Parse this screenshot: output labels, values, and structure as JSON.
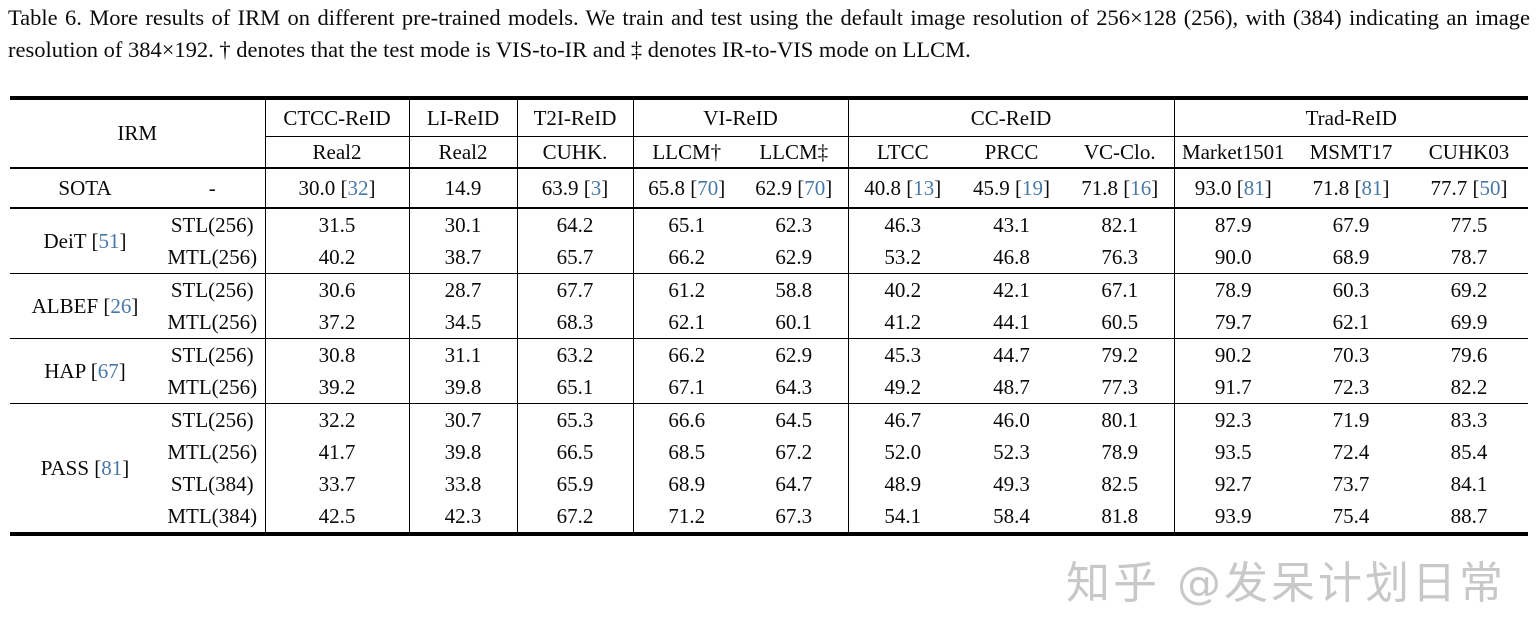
{
  "caption": {
    "text": "Table 6. More results of IRM on different pre-trained models. We train and test using the default image resolution of 256×128 (256), with (384) indicating an image resolution of 384×192. † denotes that the test mode is VIS-to-IR and ‡ denotes IR-to-VIS mode on LLCM."
  },
  "table": {
    "header": {
      "irm_label": "IRM",
      "groups": [
        {
          "label": "CTCC-ReID",
          "subs": [
            "Real2"
          ]
        },
        {
          "label": "LI-ReID",
          "subs": [
            "Real2"
          ]
        },
        {
          "label": "T2I-ReID",
          "subs": [
            "CUHK."
          ]
        },
        {
          "label": "VI-ReID",
          "subs": [
            "LLCM†",
            "LLCM‡"
          ]
        },
        {
          "label": "CC-ReID",
          "subs": [
            "LTCC",
            "PRCC",
            "VC-Clo."
          ]
        },
        {
          "label": "Trad-ReID",
          "subs": [
            "Market1501",
            "MSMT17",
            "CUHK03"
          ]
        }
      ]
    },
    "vline_after_value_cols": [
      0,
      1,
      2,
      4,
      7
    ],
    "sota_row": {
      "label": "SOTA",
      "setting": "-",
      "cells": [
        {
          "value": "30.0",
          "cite": "32"
        },
        {
          "value": "14.9"
        },
        {
          "value": "63.9",
          "cite": "3"
        },
        {
          "value": "65.8",
          "cite": "70"
        },
        {
          "value": "62.9",
          "cite": "70"
        },
        {
          "value": "40.8",
          "cite": "13"
        },
        {
          "value": "45.9",
          "cite": "19"
        },
        {
          "value": "71.8",
          "cite": "16"
        },
        {
          "value": "93.0",
          "cite": "81"
        },
        {
          "value": "71.8",
          "cite": "81"
        },
        {
          "value": "77.7",
          "cite": "50"
        }
      ]
    },
    "model_groups": [
      {
        "model": "DeiT",
        "cite": "51",
        "rows": [
          {
            "setting": "STL(256)",
            "values": [
              "31.5",
              "30.1",
              "64.2",
              "65.1",
              "62.3",
              "46.3",
              "43.1",
              "82.1",
              "87.9",
              "67.9",
              "77.5"
            ],
            "bold": []
          },
          {
            "setting": "MTL(256)",
            "values": [
              "40.2",
              "38.7",
              "65.7",
              "66.2",
              "62.9",
              "53.2",
              "46.8",
              "76.3",
              "90.0",
              "68.9",
              "78.7"
            ],
            "bold": []
          }
        ]
      },
      {
        "model": "ALBEF",
        "cite": "26",
        "rows": [
          {
            "setting": "STL(256)",
            "values": [
              "30.6",
              "28.7",
              "67.7",
              "61.2",
              "58.8",
              "40.2",
              "42.1",
              "67.1",
              "78.9",
              "60.3",
              "69.2"
            ],
            "bold": []
          },
          {
            "setting": "MTL(256)",
            "values": [
              "37.2",
              "34.5",
              "68.3",
              "62.1",
              "60.1",
              "41.2",
              "44.1",
              "60.5",
              "79.7",
              "62.1",
              "69.9"
            ],
            "bold": [
              2
            ]
          }
        ]
      },
      {
        "model": "HAP",
        "cite": "67",
        "rows": [
          {
            "setting": "STL(256)",
            "values": [
              "30.8",
              "31.1",
              "63.2",
              "66.2",
              "62.9",
              "45.3",
              "44.7",
              "79.2",
              "90.2",
              "70.3",
              "79.6"
            ],
            "bold": []
          },
          {
            "setting": "MTL(256)",
            "values": [
              "39.2",
              "39.8",
              "65.1",
              "67.1",
              "64.3",
              "49.2",
              "48.7",
              "77.3",
              "91.7",
              "72.3",
              "82.2"
            ],
            "bold": []
          }
        ]
      },
      {
        "model": "PASS",
        "cite": "81",
        "rows": [
          {
            "setting": "STL(256)",
            "values": [
              "32.2",
              "30.7",
              "65.3",
              "66.6",
              "64.5",
              "46.7",
              "46.0",
              "80.1",
              "92.3",
              "71.9",
              "83.3"
            ],
            "bold": []
          },
          {
            "setting": "MTL(256)",
            "values": [
              "41.7",
              "39.8",
              "66.5",
              "68.5",
              "67.2",
              "52.0",
              "52.3",
              "78.9",
              "93.5",
              "72.4",
              "85.4"
            ],
            "bold": []
          },
          {
            "setting": "STL(384)",
            "values": [
              "33.7",
              "33.8",
              "65.9",
              "68.9",
              "64.7",
              "48.9",
              "49.3",
              "82.5",
              "92.7",
              "73.7",
              "84.1"
            ],
            "bold": [
              7
            ]
          },
          {
            "setting": "MTL(384)",
            "values": [
              "42.5",
              "42.3",
              "67.2",
              "71.2",
              "67.3",
              "54.1",
              "58.4",
              "81.8",
              "93.9",
              "75.4",
              "88.7"
            ],
            "bold": [
              0,
              1,
              3,
              4,
              5,
              6,
              8,
              9,
              10
            ]
          }
        ]
      }
    ]
  },
  "watermark": "知乎 @发呆计划日常",
  "colors": {
    "cite_blue": "#4878a8",
    "watermark_gray": "#c8c8c8",
    "rule_black": "#000000"
  }
}
